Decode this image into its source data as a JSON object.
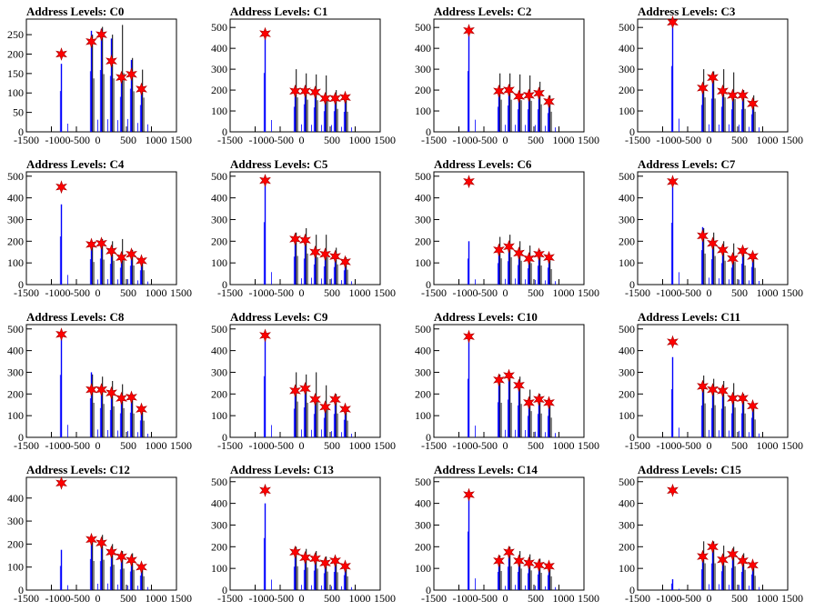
{
  "chart_data": [
    {
      "type": "bar",
      "title": "Address Levels: C0",
      "xlim": [
        -1500,
        1500
      ],
      "ylim": [
        0,
        290
      ],
      "yticks": [
        0,
        50,
        100,
        150,
        200,
        250
      ],
      "x": [
        -800,
        -200,
        0,
        200,
        400,
        600,
        800
      ],
      "markers": [
        200,
        232,
        250,
        182,
        140,
        148,
        110
      ],
      "peaks_black": [
        0,
        250,
        270,
        250,
        275,
        190,
        160
      ],
      "peaks_blue": [
        175,
        260,
        265,
        240,
        150,
        185,
        115
      ]
    },
    {
      "type": "bar",
      "title": "Address Levels: C1",
      "xlim": [
        -1500,
        1500
      ],
      "ylim": [
        0,
        540
      ],
      "yticks": [
        0,
        100,
        200,
        300,
        400,
        500
      ],
      "x": [
        -800,
        -200,
        0,
        200,
        400,
        600,
        800
      ],
      "markers": [
        470,
        195,
        195,
        190,
        160,
        160,
        165
      ],
      "peaks_black": [
        0,
        300,
        280,
        275,
        270,
        200,
        175
      ],
      "peaks_blue": [
        470,
        200,
        220,
        195,
        165,
        165,
        160
      ]
    },
    {
      "type": "bar",
      "title": "Address Levels: C2",
      "xlim": [
        -1500,
        1500
      ],
      "ylim": [
        0,
        540
      ],
      "yticks": [
        0,
        100,
        200,
        300,
        400,
        500
      ],
      "x": [
        -800,
        -200,
        0,
        200,
        400,
        600,
        800
      ],
      "markers": [
        485,
        195,
        200,
        170,
        175,
        185,
        145
      ],
      "peaks_black": [
        0,
        280,
        280,
        275,
        270,
        240,
        175
      ],
      "peaks_blue": [
        485,
        200,
        210,
        180,
        180,
        180,
        150
      ]
    },
    {
      "type": "bar",
      "title": "Address Levels: C3",
      "xlim": [
        -1500,
        1500
      ],
      "ylim": [
        0,
        540
      ],
      "yticks": [
        0,
        100,
        200,
        300,
        400,
        500
      ],
      "x": [
        -800,
        -200,
        0,
        200,
        400,
        600,
        800
      ],
      "markers": [
        525,
        210,
        260,
        195,
        175,
        175,
        135
      ],
      "peaks_black": [
        0,
        300,
        290,
        300,
        285,
        200,
        175
      ],
      "peaks_blue": [
        525,
        215,
        265,
        200,
        180,
        180,
        140
      ]
    },
    {
      "type": "bar",
      "title": "Address Levels: C4",
      "xlim": [
        -1500,
        1500
      ],
      "ylim": [
        0,
        520
      ],
      "yticks": [
        0,
        100,
        200,
        300,
        400,
        500
      ],
      "x": [
        -800,
        -200,
        0,
        200,
        400,
        600,
        800
      ],
      "markers": [
        450,
        185,
        190,
        155,
        125,
        140,
        110
      ],
      "peaks_black": [
        0,
        190,
        210,
        200,
        210,
        160,
        120
      ],
      "peaks_blue": [
        370,
        195,
        200,
        160,
        130,
        145,
        110
      ]
    },
    {
      "type": "bar",
      "title": "Address Levels: C5",
      "xlim": [
        -1500,
        1500
      ],
      "ylim": [
        0,
        520
      ],
      "yticks": [
        0,
        100,
        200,
        300,
        400,
        500
      ],
      "x": [
        -800,
        -200,
        0,
        200,
        400,
        600,
        800
      ],
      "markers": [
        480,
        210,
        205,
        150,
        140,
        130,
        105
      ],
      "peaks_black": [
        0,
        240,
        260,
        230,
        230,
        170,
        125
      ],
      "peaks_blue": [
        480,
        215,
        200,
        155,
        140,
        135,
        110
      ]
    },
    {
      "type": "bar",
      "title": "Address Levels: C6",
      "xlim": [
        -1500,
        1500
      ],
      "ylim": [
        0,
        520
      ],
      "yticks": [
        0,
        100,
        200,
        300,
        400,
        500
      ],
      "x": [
        -800,
        -200,
        0,
        200,
        400,
        600,
        800
      ],
      "markers": [
        475,
        160,
        175,
        145,
        120,
        140,
        125
      ],
      "peaks_black": [
        0,
        220,
        230,
        200,
        180,
        160,
        130
      ],
      "peaks_blue": [
        200,
        165,
        180,
        150,
        125,
        145,
        130
      ]
    },
    {
      "type": "bar",
      "title": "Address Levels: C7",
      "xlim": [
        -1500,
        1500
      ],
      "ylim": [
        0,
        520
      ],
      "yticks": [
        0,
        100,
        200,
        300,
        400,
        500
      ],
      "x": [
        -800,
        -200,
        0,
        200,
        400,
        600,
        800
      ],
      "markers": [
        475,
        225,
        190,
        160,
        120,
        155,
        130
      ],
      "peaks_black": [
        0,
        260,
        240,
        200,
        190,
        160,
        140
      ],
      "peaks_blue": [
        475,
        265,
        195,
        165,
        130,
        160,
        135
      ]
    },
    {
      "type": "bar",
      "title": "Address Levels: C8",
      "xlim": [
        -1500,
        1500
      ],
      "ylim": [
        0,
        520
      ],
      "yticks": [
        0,
        100,
        200,
        300,
        400,
        500
      ],
      "x": [
        -800,
        -200,
        0,
        200,
        400,
        600,
        800
      ],
      "markers": [
        475,
        220,
        220,
        205,
        180,
        185,
        130
      ],
      "peaks_black": [
        0,
        290,
        280,
        260,
        245,
        200,
        140
      ],
      "peaks_blue": [
        480,
        300,
        225,
        210,
        185,
        190,
        130
      ]
    },
    {
      "type": "bar",
      "title": "Address Levels: C9",
      "xlim": [
        -1500,
        1500
      ],
      "ylim": [
        0,
        520
      ],
      "yticks": [
        0,
        100,
        200,
        300,
        400,
        500
      ],
      "x": [
        -800,
        -200,
        0,
        200,
        400,
        600,
        800
      ],
      "markers": [
        470,
        215,
        225,
        175,
        140,
        175,
        130
      ],
      "peaks_black": [
        0,
        300,
        290,
        300,
        240,
        200,
        140
      ],
      "peaks_blue": [
        470,
        220,
        230,
        180,
        150,
        180,
        135
      ]
    },
    {
      "type": "bar",
      "title": "Address Levels: C10",
      "xlim": [
        -1500,
        1500
      ],
      "ylim": [
        0,
        520
      ],
      "yticks": [
        0,
        100,
        200,
        300,
        400,
        500
      ],
      "x": [
        -800,
        -200,
        0,
        200,
        400,
        600,
        800
      ],
      "markers": [
        465,
        265,
        285,
        240,
        160,
        175,
        160
      ],
      "peaks_black": [
        0,
        290,
        290,
        280,
        220,
        200,
        165
      ],
      "peaks_blue": [
        450,
        270,
        290,
        245,
        165,
        180,
        165
      ]
    },
    {
      "type": "bar",
      "title": "Address Levels: C11",
      "xlim": [
        -1500,
        1500
      ],
      "ylim": [
        0,
        520
      ],
      "yticks": [
        0,
        100,
        200,
        300,
        400,
        500
      ],
      "x": [
        -800,
        -200,
        0,
        200,
        400,
        600,
        800
      ],
      "markers": [
        440,
        235,
        220,
        215,
        180,
        180,
        145
      ],
      "peaks_black": [
        0,
        285,
        270,
        260,
        250,
        200,
        150
      ],
      "peaks_blue": [
        370,
        245,
        225,
        220,
        185,
        185,
        150
      ]
    },
    {
      "type": "bar",
      "title": "Address Levels: C12",
      "xlim": [
        -1500,
        1500
      ],
      "ylim": [
        0,
        490
      ],
      "yticks": [
        0,
        100,
        200,
        300,
        400
      ],
      "x": [
        -800,
        -200,
        0,
        200,
        400,
        600,
        800
      ],
      "markers": [
        465,
        220,
        205,
        165,
        145,
        130,
        100
      ],
      "peaks_black": [
        0,
        230,
        240,
        200,
        170,
        160,
        110
      ],
      "peaks_blue": [
        175,
        225,
        210,
        170,
        150,
        135,
        105
      ]
    },
    {
      "type": "bar",
      "title": "Address Levels: C13",
      "xlim": [
        -1500,
        1500
      ],
      "ylim": [
        0,
        520
      ],
      "yticks": [
        0,
        100,
        200,
        300,
        400,
        500
      ],
      "x": [
        -800,
        -200,
        0,
        200,
        400,
        600,
        800
      ],
      "markers": [
        460,
        175,
        150,
        145,
        125,
        135,
        110
      ],
      "peaks_black": [
        0,
        200,
        190,
        180,
        155,
        150,
        115
      ],
      "peaks_blue": [
        400,
        180,
        155,
        150,
        130,
        140,
        115
      ]
    },
    {
      "type": "bar",
      "title": "Address Levels: C14",
      "xlim": [
        -1500,
        1500
      ],
      "ylim": [
        0,
        520
      ],
      "yticks": [
        0,
        100,
        200,
        300,
        400,
        500
      ],
      "x": [
        -800,
        -200,
        0,
        200,
        400,
        600,
        800
      ],
      "markers": [
        440,
        135,
        175,
        135,
        125,
        115,
        110
      ],
      "peaks_black": [
        0,
        160,
        200,
        180,
        165,
        145,
        115
      ],
      "peaks_blue": [
        450,
        140,
        180,
        140,
        130,
        120,
        115
      ]
    },
    {
      "type": "bar",
      "title": "Address Levels: C15",
      "xlim": [
        -1500,
        1500
      ],
      "ylim": [
        0,
        520
      ],
      "yticks": [
        0,
        100,
        200,
        300,
        400,
        500
      ],
      "x": [
        -800,
        -200,
        0,
        200,
        400,
        600,
        800
      ],
      "markers": [
        460,
        155,
        200,
        140,
        165,
        135,
        115
      ],
      "peaks_black": [
        0,
        225,
        225,
        205,
        200,
        170,
        120
      ],
      "peaks_blue": [
        50,
        160,
        205,
        145,
        170,
        140,
        120
      ]
    }
  ],
  "xticks": [
    -1500,
    -1000,
    -500,
    0,
    500,
    1000,
    1500
  ],
  "colors": {
    "black_series": "#000000",
    "blue_series": "#0000ff",
    "marker": "#ff0000",
    "axis": "#000000"
  }
}
